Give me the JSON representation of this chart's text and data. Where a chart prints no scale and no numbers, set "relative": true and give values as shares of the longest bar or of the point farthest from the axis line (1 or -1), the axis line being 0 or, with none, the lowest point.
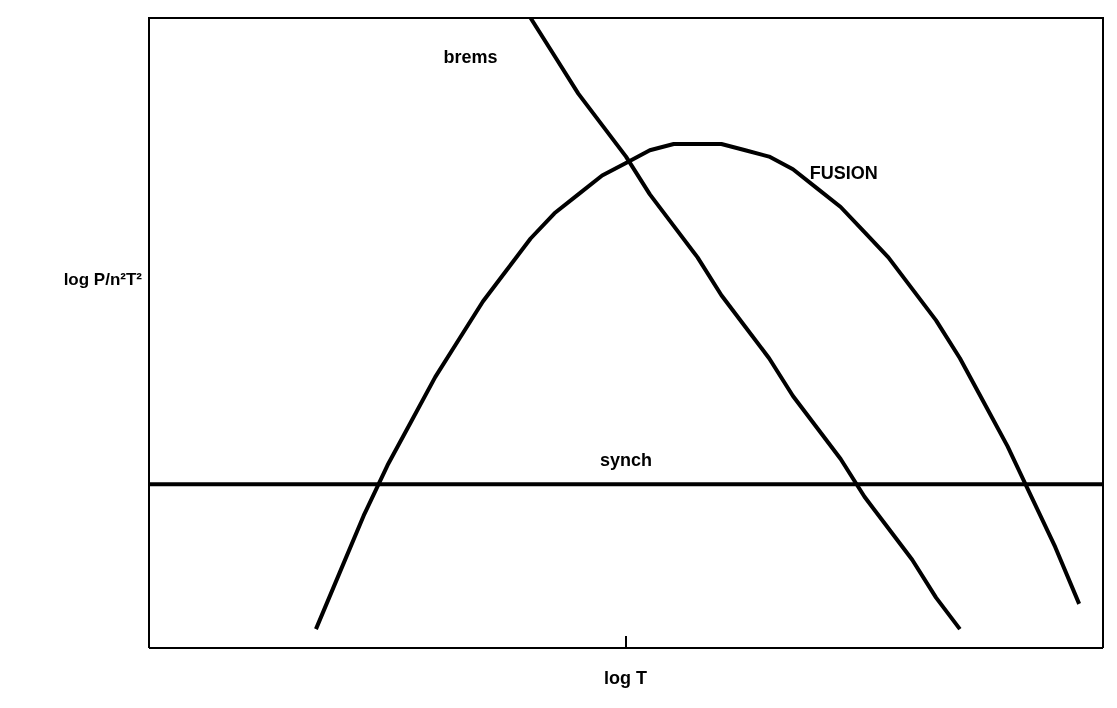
{
  "chart_data": {
    "type": "line",
    "relative": true,
    "xlabel": "log T",
    "ylabel": "log P/n²T²",
    "categories": [
      null,
      null,
      null,
      null,
      null,
      null,
      null,
      null,
      null,
      null,
      null,
      null,
      null,
      null,
      null,
      null,
      null,
      null,
      null,
      null,
      null,
      null,
      null,
      null,
      null,
      null,
      null,
      null,
      null,
      null,
      null,
      null,
      null,
      null,
      null,
      null,
      null,
      null,
      null,
      null,
      null
    ],
    "series": [
      {
        "name": "brems",
        "color": "#000000",
        "values": [
          null,
          null,
          null,
          null,
          null,
          null,
          null,
          null,
          null,
          null,
          null,
          null,
          null,
          null,
          null,
          null,
          1,
          0.94,
          0.88,
          0.83,
          0.78,
          0.72,
          0.67,
          0.62,
          0.56,
          0.51,
          0.46,
          0.4,
          0.35,
          0.3,
          0.24,
          0.19,
          0.14,
          0.08,
          0.03,
          null,
          null,
          null,
          null,
          null,
          null
        ]
      },
      {
        "name": "FUSION",
        "color": "#000000",
        "values": [
          null,
          null,
          null,
          null,
          null,
          null,
          null,
          0.03,
          0.12,
          0.21,
          0.29,
          0.36,
          0.43,
          0.49,
          0.55,
          0.6,
          0.65,
          0.69,
          0.72,
          0.75,
          0.77,
          0.79,
          0.8,
          0.8,
          0.8,
          0.79,
          0.78,
          0.76,
          0.73,
          0.7,
          0.66,
          0.62,
          0.57,
          0.52,
          0.46,
          0.39,
          0.32,
          0.24,
          0.16,
          0.07,
          null
        ]
      },
      {
        "name": "synch",
        "color": "#000000",
        "values": [
          0.26,
          0.26,
          0.26,
          0.26,
          0.26,
          0.26,
          0.26,
          0.26,
          0.26,
          0.26,
          0.26,
          0.26,
          0.26,
          0.26,
          0.26,
          0.26,
          0.26,
          0.26,
          0.26,
          0.26,
          0.26,
          0.26,
          0.26,
          0.26,
          0.26,
          0.26,
          0.26,
          0.26,
          0.26,
          0.26,
          0.26,
          0.26,
          0.26,
          0.26,
          0.26,
          0.26,
          0.26,
          0.26,
          0.26,
          0.26,
          0.26
        ]
      }
    ],
    "grid": false,
    "legend": false,
    "marker": "none",
    "line_style": "solid"
  }
}
